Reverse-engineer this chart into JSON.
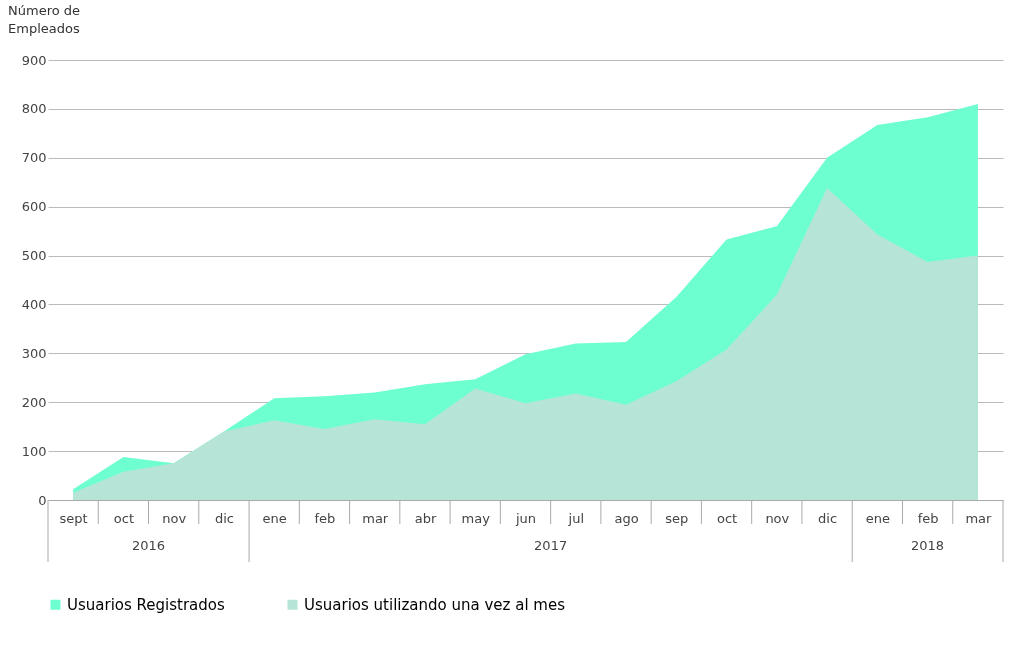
{
  "chart_data": {
    "type": "area",
    "ylabel": "Número de\nEmpleados",
    "categories": [
      "sept",
      "oct",
      "nov",
      "dic",
      "ene",
      "feb",
      "mar",
      "abr",
      "may",
      "jun",
      "jul",
      "ago",
      "sep",
      "oct",
      "nov",
      "dic",
      "ene",
      "feb",
      "mar"
    ],
    "annotations": [
      "2016",
      "2017",
      "2018"
    ],
    "series": [
      {
        "name": "Usuarios Registrados",
        "color": "#6effd1",
        "values": [
          22,
          88,
          75,
          140,
          208,
          212,
          220,
          237,
          247,
          298,
          320,
          323,
          415,
          533,
          560,
          700,
          767,
          783,
          810
        ]
      },
      {
        "name": "Usuarios utilizando una vez al mes",
        "color": "#b6e4d7",
        "values": [
          15,
          58,
          75,
          140,
          163,
          145,
          165,
          155,
          228,
          198,
          218,
          195,
          243,
          308,
          420,
          638,
          543,
          487,
          500
        ]
      }
    ],
    "ylim": [
      0,
      900
    ],
    "yticks": [
      0,
      100,
      200,
      300,
      400,
      500,
      600,
      700,
      800,
      900
    ],
    "grid": "y",
    "legend": "bottom"
  }
}
